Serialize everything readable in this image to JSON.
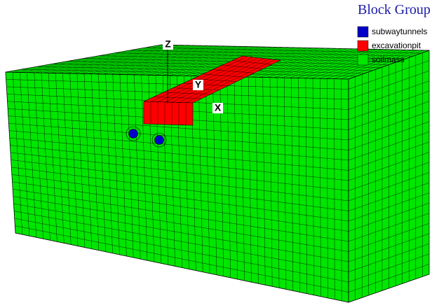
{
  "legend": {
    "title": "Block Group",
    "items": [
      {
        "name": "subwaytunnels",
        "color": "#0000c8"
      },
      {
        "name": "excavationpit",
        "color": "#ff0000"
      },
      {
        "name": "soilmass",
        "color": "#00e600"
      }
    ]
  },
  "axes": {
    "z": "Z",
    "y": "Y",
    "x": "X"
  }
}
